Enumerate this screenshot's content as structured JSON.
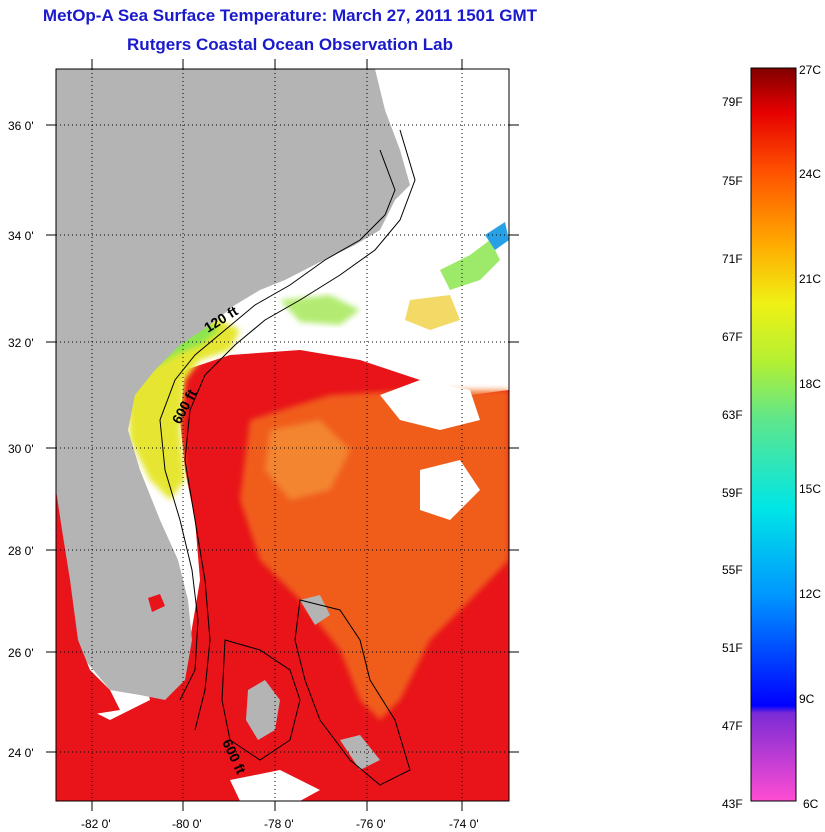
{
  "title": "MetOp-A Sea Surface Temperature:  March 27, 2011 1501 GMT",
  "subtitle": "Rutgers Coastal Ocean Observation Lab",
  "map": {
    "lon_ticks": [
      "-82 0'",
      "-80 0'",
      "-78 0'",
      "-76 0'",
      "-74 0'"
    ],
    "lat_ticks": [
      "36 0'",
      "34 0'",
      "32 0'",
      "30 0'",
      "28 0'",
      "26 0'",
      "24 0'"
    ],
    "contour_labels": [
      "120 ft",
      "600 ft",
      "600 ft"
    ],
    "colors": {
      "land": "#b4b4b4",
      "warm": "#e8141a",
      "orange": "#f26a1c",
      "yellow": "#e6e632",
      "green": "#8ce650",
      "cyan": "#28d2e6"
    }
  },
  "colorbar": {
    "fahrenheit_labels": [
      "79F",
      "75F",
      "71F",
      "67F",
      "63F",
      "59F",
      "55F",
      "51F",
      "47F",
      "43F"
    ],
    "celsius_labels": [
      "27C",
      "24C",
      "21C",
      "18C",
      "15C",
      "12C",
      "9C",
      "6C"
    ]
  }
}
